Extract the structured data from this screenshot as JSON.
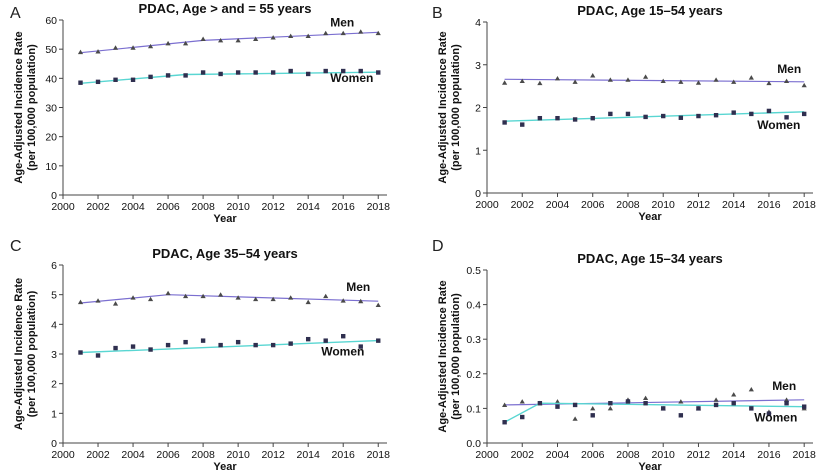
{
  "chart_data": [
    {
      "type": "scatter",
      "panel": "A",
      "title": "PDAC, Age > and = 55 years",
      "xlabel": "Year",
      "ylabel": [
        "Age-Adjusted Incidence Rate",
        "(per 100,000 population)"
      ],
      "xlim": [
        2000,
        2018.5
      ],
      "ylim": [
        0,
        60
      ],
      "x_ticks": [
        2000,
        2002,
        2004,
        2006,
        2008,
        2010,
        2012,
        2014,
        2016,
        2018
      ],
      "y_ticks": [
        0,
        10,
        20,
        30,
        40,
        50,
        60
      ],
      "x": [
        2001,
        2002,
        2003,
        2004,
        2005,
        2006,
        2007,
        2008,
        2009,
        2010,
        2011,
        2012,
        2013,
        2014,
        2015,
        2016,
        2017,
        2018
      ],
      "series": [
        {
          "name": "Men",
          "values": [
            49,
            49.2,
            50.5,
            50.5,
            51,
            52,
            52,
            53.5,
            53,
            53,
            53.5,
            54,
            54.5,
            54.5,
            55.5,
            55.5,
            56,
            55.5
          ],
          "trend": [
            [
              2001,
              48.8
            ],
            [
              2008,
              53
            ],
            [
              2018,
              55.8
            ]
          ],
          "color": "#7b6fd0"
        },
        {
          "name": "Women",
          "values": [
            38.5,
            38.8,
            39.5,
            39.5,
            40.5,
            41,
            41,
            42,
            41.5,
            42,
            42,
            42,
            42.5,
            41.5,
            42.5,
            42.5,
            42.5,
            42
          ],
          "trend": [
            [
              2001,
              38.3
            ],
            [
              2007,
              41.3
            ],
            [
              2018,
              42.1
            ]
          ],
          "color": "#59d6d2"
        }
      ]
    },
    {
      "type": "scatter",
      "panel": "B",
      "title": "PDAC, Age 15–54 years",
      "xlabel": "Year",
      "ylabel": [
        "Age-Adjusted Incidence Rate",
        "(per 100,000 population)"
      ],
      "xlim": [
        2000,
        2018.5
      ],
      "ylim": [
        0,
        4
      ],
      "x_ticks": [
        2000,
        2002,
        2004,
        2006,
        2008,
        2010,
        2012,
        2014,
        2016,
        2018
      ],
      "y_ticks": [
        0,
        1,
        2,
        3,
        4
      ],
      "x": [
        2001,
        2002,
        2003,
        2004,
        2005,
        2006,
        2007,
        2008,
        2009,
        2010,
        2011,
        2012,
        2013,
        2014,
        2015,
        2016,
        2017,
        2018
      ],
      "series": [
        {
          "name": "Men",
          "values": [
            2.58,
            2.62,
            2.57,
            2.68,
            2.6,
            2.75,
            2.65,
            2.65,
            2.72,
            2.62,
            2.6,
            2.58,
            2.65,
            2.6,
            2.7,
            2.57,
            2.62,
            2.52
          ],
          "trend": [
            [
              2001,
              2.66
            ],
            [
              2018,
              2.6
            ]
          ],
          "color": "#7b6fd0"
        },
        {
          "name": "Women",
          "values": [
            1.65,
            1.6,
            1.75,
            1.75,
            1.72,
            1.75,
            1.85,
            1.85,
            1.78,
            1.8,
            1.76,
            1.8,
            1.82,
            1.88,
            1.85,
            1.92,
            1.77,
            1.85
          ],
          "trend": [
            [
              2001,
              1.68
            ],
            [
              2018,
              1.9
            ]
          ],
          "color": "#59d6d2"
        }
      ]
    },
    {
      "type": "scatter",
      "panel": "C",
      "title": "PDAC, Age 35–54 years",
      "xlabel": "Year",
      "ylabel": [
        "Age-Adjusted Incidence Rate",
        "(per 100,000 population)"
      ],
      "xlim": [
        2000,
        2018.5
      ],
      "ylim": [
        0,
        6
      ],
      "x_ticks": [
        2000,
        2002,
        2004,
        2006,
        2008,
        2010,
        2012,
        2014,
        2016,
        2018
      ],
      "y_ticks": [
        0,
        1,
        2,
        3,
        4,
        5,
        6
      ],
      "x": [
        2001,
        2002,
        2003,
        2004,
        2005,
        2006,
        2007,
        2008,
        2009,
        2010,
        2011,
        2012,
        2013,
        2014,
        2015,
        2016,
        2017,
        2018
      ],
      "series": [
        {
          "name": "Men",
          "values": [
            4.75,
            4.8,
            4.7,
            4.9,
            4.85,
            5.05,
            4.95,
            4.95,
            5,
            4.9,
            4.85,
            4.85,
            4.9,
            4.75,
            4.95,
            4.8,
            4.78,
            4.65
          ],
          "trend": [
            [
              2001,
              4.72
            ],
            [
              2006,
              5.0
            ],
            [
              2018,
              4.78
            ]
          ],
          "color": "#7b6fd0"
        },
        {
          "name": "Women",
          "values": [
            3.05,
            2.95,
            3.2,
            3.25,
            3.15,
            3.3,
            3.4,
            3.45,
            3.3,
            3.4,
            3.3,
            3.3,
            3.35,
            3.5,
            3.45,
            3.6,
            3.25,
            3.45
          ],
          "trend": [
            [
              2001,
              3.05
            ],
            [
              2018,
              3.45
            ]
          ],
          "color": "#59d6d2"
        }
      ]
    },
    {
      "type": "scatter",
      "panel": "D",
      "title": "PDAC, Age 15–34 years",
      "xlabel": "Year",
      "ylabel": [
        "Age-Adjusted Incidence Rate",
        "(per 100,000 population)"
      ],
      "xlim": [
        2000,
        2018.5
      ],
      "ylim": [
        0,
        0.5
      ],
      "x_ticks": [
        2000,
        2002,
        2004,
        2006,
        2008,
        2010,
        2012,
        2014,
        2016,
        2018
      ],
      "y_ticks": [
        0,
        0.1,
        0.2,
        0.3,
        0.4,
        0.5
      ],
      "x": [
        2001,
        2002,
        2003,
        2004,
        2005,
        2006,
        2007,
        2008,
        2009,
        2010,
        2011,
        2012,
        2013,
        2014,
        2015,
        2016,
        2017,
        2018
      ],
      "series": [
        {
          "name": "Men",
          "values": [
            0.11,
            0.12,
            0.115,
            0.12,
            0.07,
            0.1,
            0.1,
            0.125,
            0.13,
            0.1,
            0.12,
            0.1,
            0.125,
            0.14,
            0.155,
            0.09,
            0.125,
            0.1
          ],
          "trend": [
            [
              2001,
              0.11
            ],
            [
              2018,
              0.125
            ]
          ],
          "color": "#7b6fd0"
        },
        {
          "name": "Women",
          "values": [
            0.06,
            0.075,
            0.115,
            0.105,
            0.11,
            0.08,
            0.115,
            0.12,
            0.115,
            0.1,
            0.08,
            0.1,
            0.11,
            0.115,
            0.1,
            0.085,
            0.115,
            0.105
          ],
          "trend": [
            [
              2001,
              0.06
            ],
            [
              2003,
              0.115
            ],
            [
              2018,
              0.105
            ]
          ],
          "color": "#59d6d2"
        }
      ]
    }
  ]
}
